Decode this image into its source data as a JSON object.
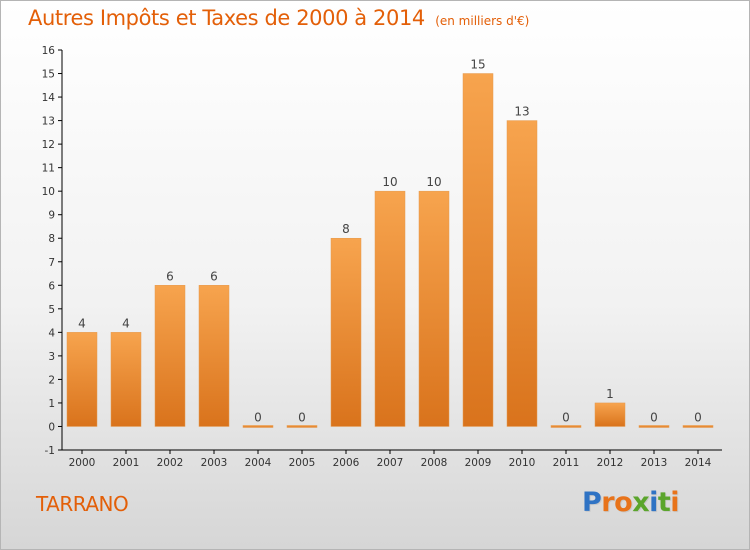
{
  "chart_data": {
    "type": "bar",
    "title": "Autres Impôts et Taxes de 2000 à 2014",
    "subtitle": "(en milliers d'€)",
    "categories": [
      "2000",
      "2001",
      "2002",
      "2003",
      "2004",
      "2005",
      "2006",
      "2007",
      "2008",
      "2009",
      "2010",
      "2011",
      "2012",
      "2013",
      "2014"
    ],
    "values": [
      4,
      4,
      6,
      6,
      0,
      0,
      8,
      10,
      10,
      15,
      13,
      0,
      1,
      0,
      0
    ],
    "ylim": [
      -1,
      16
    ],
    "yticks": [
      "-1",
      "0",
      "1",
      "2",
      "3",
      "4",
      "5",
      "6",
      "7",
      "8",
      "9",
      "10",
      "11",
      "12",
      "13",
      "14",
      "15",
      "16"
    ],
    "xlabel": "",
    "ylabel": "",
    "grid": false,
    "legend": "none",
    "bar_color_top": "#f7a44e",
    "bar_color_bottom": "#d9731c"
  },
  "commune": "TARRANO",
  "logo": {
    "letters": [
      "P",
      "r",
      "o",
      "x",
      "i",
      "t",
      "i"
    ],
    "colors": [
      "#2f73c4",
      "#e8731a",
      "#e8731a",
      "#5ba52c",
      "#2f73c4",
      "#5ba52c",
      "#e8731a"
    ]
  },
  "colors": {
    "title": "#e35f08",
    "axis": "#000000"
  }
}
